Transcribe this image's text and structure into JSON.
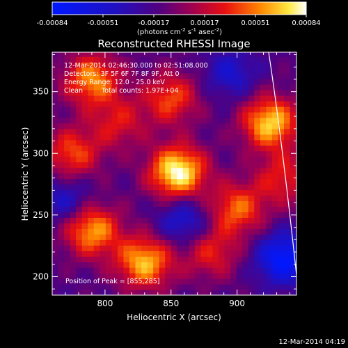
{
  "chart_data": {
    "type": "heatmap",
    "title": "Reconstructed RHESSI Image",
    "colorbar": {
      "ticks": [
        "-0.00084",
        "-0.00051",
        "-0.00017",
        "0.00017",
        "0.00051",
        "0.00084"
      ],
      "label": "(photons cm",
      "label_sup1": "-2",
      "label_mid1": " s",
      "label_sup2": "-1",
      "label_mid2": " asec",
      "label_sup3": "-2",
      "label_end": ")",
      "colormap": "blue-purple-red-yellow-white"
    },
    "xlabel": "Heliocentric X (arcsec)",
    "ylabel": "Heliocentric Y (arcsec)",
    "xlim": [
      760,
      945
    ],
    "ylim": [
      185,
      382
    ],
    "xticks": [
      800,
      850,
      900
    ],
    "yticks": [
      200,
      250,
      300,
      350
    ],
    "info": {
      "time": "12-Mar-2014 02:46:30.000 to 02:51:08.000",
      "detectors": "Detectors: 3F 5F 6F 7F 8F 9F, Att 0",
      "energy": "Energy Range: 12.0 - 25.0 keV",
      "method": "Clean",
      "counts": "Total counts: 1.97E+04"
    },
    "peak_label": "Position of Peak = [855,285]",
    "peak": [
      855,
      285
    ],
    "hotspots": [
      {
        "x": 855,
        "y": 285,
        "v": 1.0
      },
      {
        "x": 925,
        "y": 325,
        "v": 0.85
      },
      {
        "x": 830,
        "y": 212,
        "v": 0.8
      },
      {
        "x": 790,
        "y": 238,
        "v": 0.75
      },
      {
        "x": 790,
        "y": 360,
        "v": 0.7
      },
      {
        "x": 900,
        "y": 255,
        "v": 0.6
      },
      {
        "x": 775,
        "y": 300,
        "v": 0.55
      },
      {
        "x": 850,
        "y": 345,
        "v": 0.55
      },
      {
        "x": 935,
        "y": 280,
        "v": 0.45
      },
      {
        "x": 880,
        "y": 220,
        "v": 0.45
      },
      {
        "x": 810,
        "y": 325,
        "v": 0.4
      }
    ],
    "coldspots": [
      {
        "x": 935,
        "y": 215,
        "v": 1.0
      },
      {
        "x": 860,
        "y": 245,
        "v": 0.6
      },
      {
        "x": 770,
        "y": 262,
        "v": 0.5
      },
      {
        "x": 895,
        "y": 365,
        "v": 0.5
      }
    ]
  },
  "footer": {
    "timestamp": "12-Mar-2014 04:19"
  }
}
